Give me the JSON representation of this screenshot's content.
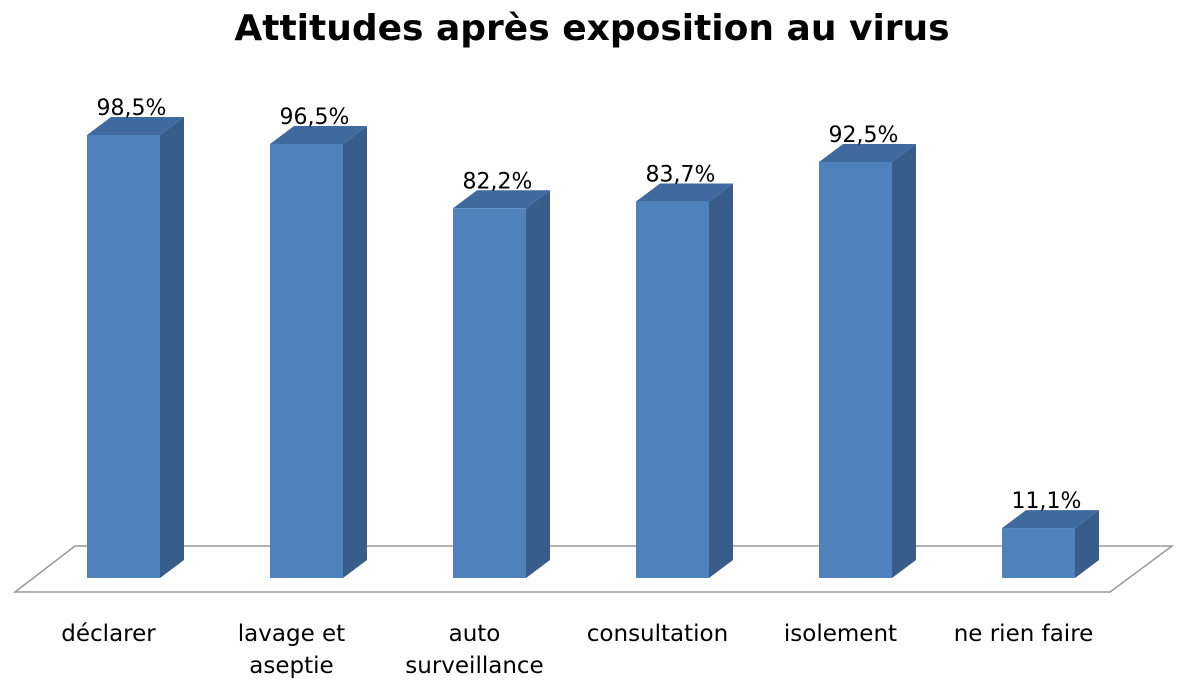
{
  "chart_data": {
    "type": "bar3d",
    "title": "Attitudes après exposition au virus",
    "categories": [
      "déclarer",
      "lavage et aseptie",
      "auto surveillance",
      "consultation",
      "isolement",
      "ne rien faire"
    ],
    "values": [
      98.5,
      96.5,
      82.2,
      83.7,
      92.5,
      11.1
    ],
    "value_labels": [
      "98,5%",
      "96,5%",
      "82,2%",
      "83,7%",
      "92,5%",
      "11,1%"
    ],
    "color": "#4f81bd"
  }
}
